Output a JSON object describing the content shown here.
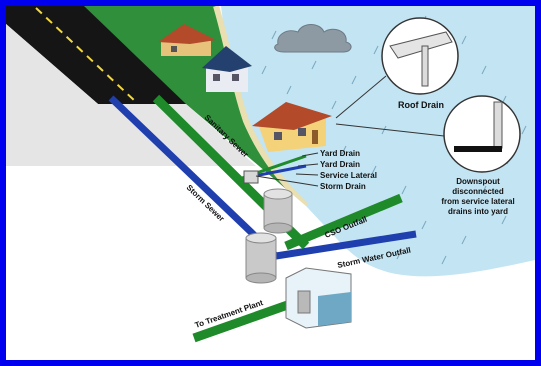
{
  "labels": {
    "roof_drain": "Roof Drain",
    "yard_drain_1": "Yard Drain",
    "yard_drain_2": "Yard Drain",
    "service_lateral": "Service Lateral",
    "storm_drain": "Storm Drain",
    "downspout_line1": "Downspout",
    "downspout_line2": "disconnected",
    "downspout_line3": "from service lateral",
    "downspout_line4": "drains into yard",
    "sanitary_sewer": "Sanitary Sewer",
    "storm_sewer": "Storm Sewer",
    "cso_outfall": "CSO Outfall",
    "storm_water_outfall": "Storm Water Outfall",
    "to_treatment_plant": "To Treatment Plant"
  },
  "colors": {
    "border": "#0000ee",
    "sanitary_pipe": "#1e8a2a",
    "storm_pipe": "#1f3fae",
    "grass": "#2f8f3a",
    "water": "#bfe3f2",
    "road": "#1a1a1a",
    "house_yellow": "#f4d27a",
    "house_roof": "#b34a2a"
  }
}
